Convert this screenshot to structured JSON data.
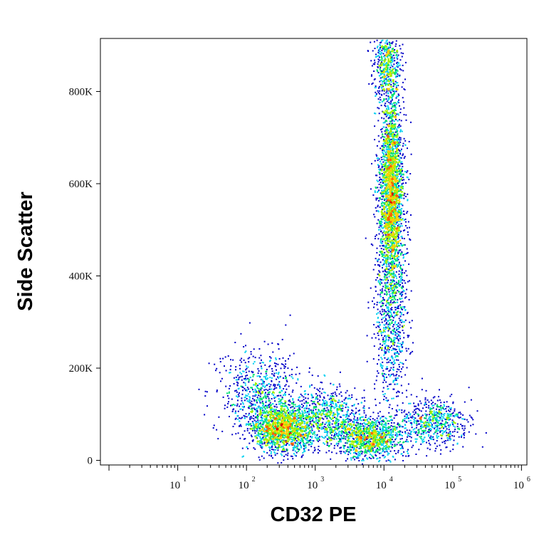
{
  "chart_data": {
    "type": "scatter",
    "style": "density-dot-plot",
    "xlabel": "CD32 PE",
    "ylabel": "Side Scatter",
    "x_scale": "log",
    "xlim": [
      0.75,
      1200000
    ],
    "ylim": [
      -10000,
      915000
    ],
    "x_ticks": [
      {
        "value": 10,
        "base": "10",
        "exp": "1"
      },
      {
        "value": 100,
        "base": "10",
        "exp": "2"
      },
      {
        "value": 1000,
        "base": "10",
        "exp": "3"
      },
      {
        "value": 10000,
        "base": "10",
        "exp": "4"
      },
      {
        "value": 100000,
        "base": "10",
        "exp": "5"
      },
      {
        "value": 1000000,
        "base": "10",
        "exp": "6"
      }
    ],
    "y_ticks": [
      {
        "value": 0,
        "label": "0"
      },
      {
        "value": 200000,
        "label": "200K"
      },
      {
        "value": 400000,
        "label": "400K"
      },
      {
        "value": 600000,
        "label": "600K"
      },
      {
        "value": 800000,
        "label": "800K"
      }
    ],
    "grid": false,
    "legend": "none",
    "colormap": [
      "#0000c8",
      "#0070ff",
      "#00d0f0",
      "#00e070",
      "#a0f000",
      "#ffd000",
      "#ff6000",
      "#d80000"
    ],
    "populations": [
      {
        "x_center": 12500,
        "y_center": 580000,
        "x_spread_log10": 0.09,
        "y_spread": 110000,
        "count": 2600
      },
      {
        "x_center": 12500,
        "y_center": 300000,
        "x_spread_log10": 0.12,
        "y_spread": 90000,
        "count": 700
      },
      {
        "x_center": 11000,
        "y_center": 860000,
        "x_spread_log10": 0.1,
        "y_spread": 35000,
        "count": 500
      },
      {
        "x_center": 330,
        "y_center": 70000,
        "x_spread_log10": 0.22,
        "y_spread": 25000,
        "count": 1500
      },
      {
        "x_center": 150,
        "y_center": 140000,
        "x_spread_log10": 0.3,
        "y_spread": 50000,
        "count": 700
      },
      {
        "x_center": 1500,
        "y_center": 95000,
        "x_spread_log10": 0.25,
        "y_spread": 30000,
        "count": 700
      },
      {
        "x_center": 6000,
        "y_center": 50000,
        "x_spread_log10": 0.25,
        "y_spread": 22000,
        "count": 1100
      },
      {
        "x_center": 50000,
        "y_center": 85000,
        "x_spread_log10": 0.25,
        "y_spread": 25000,
        "count": 600
      }
    ]
  }
}
